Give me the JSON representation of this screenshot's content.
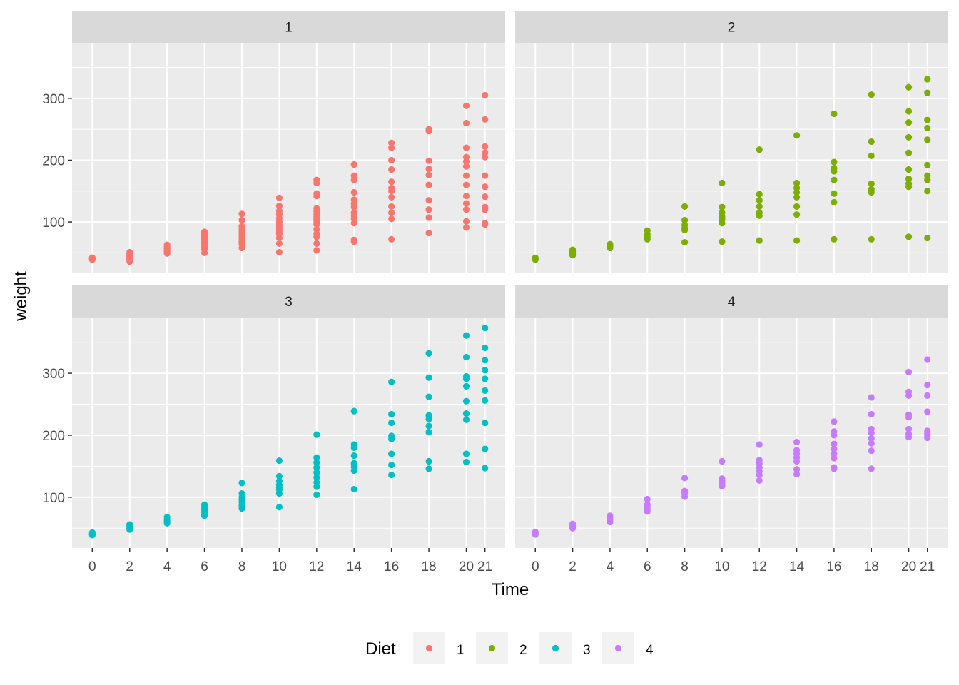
{
  "chart_data": {
    "type": "scatter",
    "facet_by": "Diet",
    "xlabel": "Time",
    "ylabel": "weight",
    "x_ticks": [
      0,
      2,
      4,
      6,
      8,
      10,
      12,
      14,
      16,
      18,
      20,
      21
    ],
    "x_tick_labels": [
      "0",
      "2",
      "4",
      "6",
      "8",
      "10",
      "12",
      "14",
      "16",
      "18",
      "20",
      "21"
    ],
    "y_ticks": [
      100,
      200,
      300
    ],
    "y_tick_labels": [
      "100",
      "200",
      "300"
    ],
    "ylim": [
      35,
      373
    ],
    "grid": true,
    "legend": {
      "title": "Diet",
      "position": "bottom",
      "entries": [
        {
          "label": "1",
          "color": "#F8766D"
        },
        {
          "label": "2",
          "color": "#7CAE00"
        },
        {
          "label": "3",
          "color": "#00BFC4"
        },
        {
          "label": "4",
          "color": "#C77CFF"
        }
      ]
    },
    "panels": [
      {
        "strip": "1",
        "color": "#F8766D",
        "points": {
          "0": [
            42,
            41,
            40,
            39,
            41,
            42
          ],
          "2": [
            51,
            49,
            48,
            46,
            44,
            42,
            40,
            38,
            36
          ],
          "4": [
            63,
            60,
            58,
            56,
            54,
            52,
            50,
            49
          ],
          "6": [
            84,
            81,
            78,
            75,
            72,
            68,
            64,
            60,
            56,
            50
          ],
          "8": [
            113,
            103,
            93,
            88,
            84,
            80,
            76,
            72,
            68,
            64,
            58
          ],
          "10": [
            139,
            126,
            118,
            112,
            106,
            100,
            96,
            92,
            88,
            84,
            80,
            74,
            65,
            51
          ],
          "12": [
            168,
            163,
            146,
            142,
            122,
            117,
            112,
            108,
            104,
            100,
            96,
            88,
            81,
            76,
            65,
            54
          ],
          "14": [
            193,
            175,
            168,
            148,
            136,
            130,
            124,
            115,
            110,
            105,
            98,
            71,
            68
          ],
          "16": [
            228,
            220,
            200,
            185,
            165,
            155,
            150,
            140,
            125,
            115,
            105,
            72
          ],
          "18": [
            250,
            247,
            199,
            186,
            176,
            160,
            135,
            120,
            107,
            82
          ],
          "20": [
            288,
            260,
            220,
            205,
            198,
            190,
            175,
            160,
            142,
            130,
            120,
            101,
            91
          ],
          "21": [
            305,
            266,
            222,
            212,
            205,
            175,
            157,
            141,
            124,
            120,
            98,
            96
          ]
        }
      },
      {
        "strip": "2",
        "color": "#7CAE00",
        "points": {
          "0": [
            42,
            41,
            40,
            39
          ],
          "2": [
            55,
            52,
            50,
            48,
            46
          ],
          "4": [
            64,
            62,
            60,
            58
          ],
          "6": [
            86,
            80,
            76,
            72
          ],
          "8": [
            125,
            103,
            95,
            90,
            87,
            67
          ],
          "10": [
            163,
            124,
            115,
            108,
            104,
            98,
            68
          ],
          "12": [
            217,
            145,
            135,
            125,
            115,
            110,
            70
          ],
          "14": [
            240,
            163,
            155,
            148,
            140,
            125,
            112,
            70
          ],
          "16": [
            275,
            197,
            187,
            182,
            168,
            146,
            132,
            72
          ],
          "18": [
            306,
            230,
            207,
            162,
            153,
            148,
            72
          ],
          "20": [
            318,
            279,
            261,
            237,
            212,
            185,
            170,
            162,
            157,
            76
          ],
          "21": [
            331,
            309,
            265,
            252,
            233,
            192,
            175,
            168,
            150,
            74
          ]
        }
      },
      {
        "strip": "3",
        "color": "#00BFC4",
        "points": {
          "0": [
            43,
            41,
            40,
            39
          ],
          "2": [
            56,
            54,
            52,
            50,
            48
          ],
          "4": [
            68,
            65,
            62,
            60,
            58
          ],
          "6": [
            88,
            84,
            80,
            76,
            72,
            70
          ],
          "8": [
            123,
            106,
            100,
            96,
            92,
            87,
            82
          ],
          "10": [
            159,
            134,
            126,
            120,
            116,
            112,
            106,
            84
          ],
          "12": [
            201,
            164,
            156,
            148,
            140,
            132,
            124,
            117,
            104
          ],
          "14": [
            239,
            185,
            180,
            167,
            155,
            149,
            143,
            113
          ],
          "16": [
            286,
            234,
            220,
            199,
            194,
            170,
            152,
            136
          ],
          "18": [
            332,
            293,
            262,
            232,
            226,
            215,
            205,
            158,
            146
          ],
          "20": [
            361,
            326,
            295,
            291,
            279,
            255,
            235,
            225,
            170,
            157
          ],
          "21": [
            373,
            341,
            321,
            305,
            291,
            272,
            256,
            220,
            178,
            147
          ]
        }
      },
      {
        "strip": "4",
        "color": "#C77CFF",
        "points": {
          "0": [
            44,
            42,
            41,
            40
          ],
          "2": [
            57,
            54,
            52,
            50
          ],
          "4": [
            70,
            66,
            63,
            60
          ],
          "6": [
            97,
            88,
            84,
            80,
            77
          ],
          "8": [
            131,
            110,
            106,
            101
          ],
          "10": [
            158,
            130,
            126,
            122,
            118
          ],
          "12": [
            185,
            160,
            154,
            148,
            142,
            136,
            127
          ],
          "14": [
            189,
            176,
            170,
            164,
            158,
            145,
            137
          ],
          "16": [
            222,
            206,
            200,
            186,
            178,
            170,
            163,
            148,
            146
          ],
          "18": [
            261,
            234,
            210,
            204,
            195,
            187,
            175,
            146
          ],
          "20": [
            302,
            270,
            264,
            233,
            229,
            210,
            202,
            197
          ],
          "21": [
            322,
            281,
            264,
            238,
            207,
            203,
            200,
            196
          ]
        }
      }
    ]
  }
}
